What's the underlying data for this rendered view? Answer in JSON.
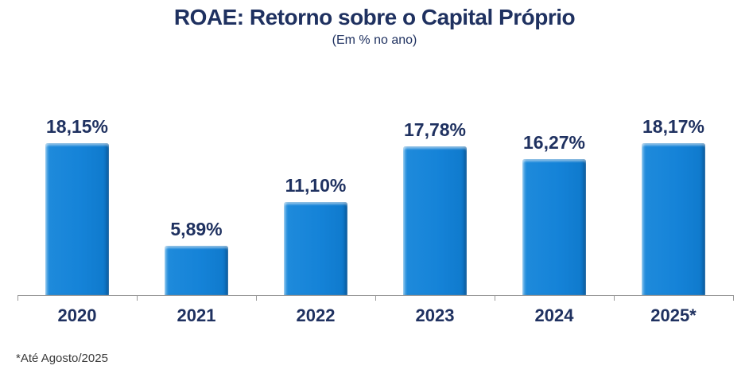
{
  "chart_data": {
    "type": "bar",
    "title": "ROAE: Retorno sobre o Capital Próprio",
    "subtitle": "(Em % no ano)",
    "categories": [
      "2020",
      "2021",
      "2022",
      "2023",
      "2024",
      "2025*"
    ],
    "values": [
      18.15,
      5.89,
      11.1,
      17.78,
      16.27,
      18.17
    ],
    "value_labels": [
      "18,15%",
      "5,89%",
      "11,10%",
      "17,78%",
      "16,27%",
      "18,17%"
    ],
    "footnote": "*Até Agosto/2025",
    "xlabel": "",
    "ylabel": "",
    "ylim": [
      0,
      20
    ],
    "grid": false,
    "legend": "none",
    "bar_color": "#1583D8",
    "label_color": "#1F3160",
    "axis_color": "#9A9A9A"
  }
}
